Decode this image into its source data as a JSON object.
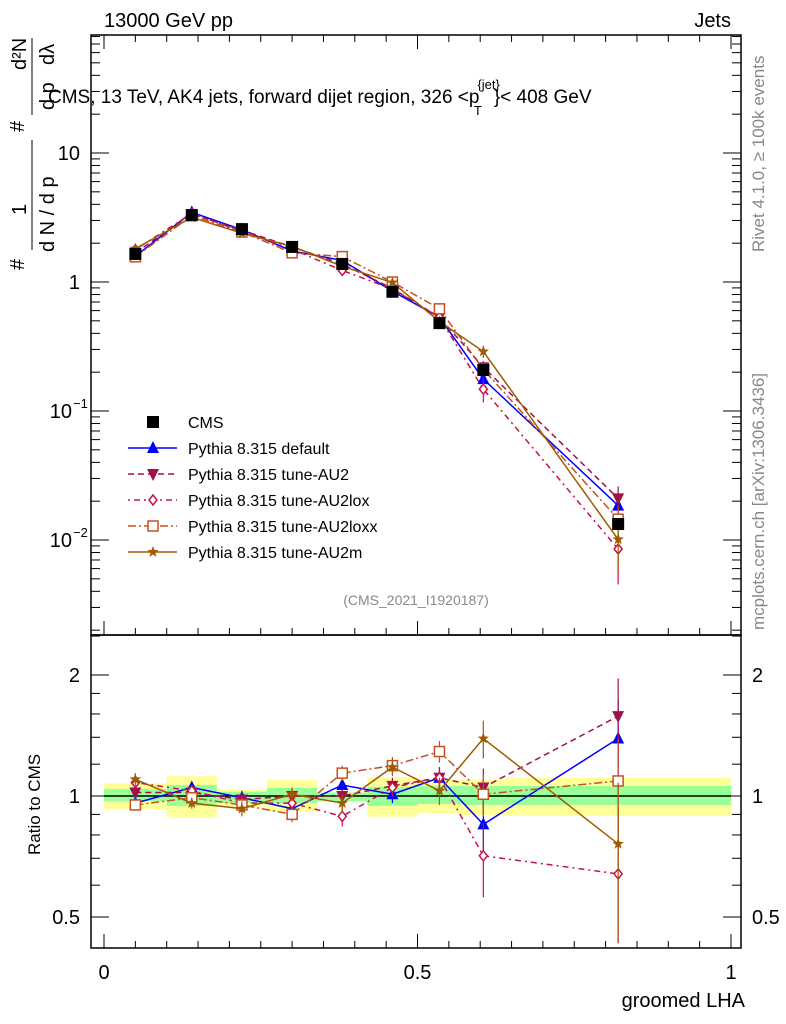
{
  "header": {
    "left": "13000 GeV pp",
    "right": "Jets"
  },
  "side_text": {
    "rivet": "Rivet 4.1.0, ≥ 100k events",
    "mcplots": "mcplots.cern.ch [arXiv:1306.3436]"
  },
  "chart_data": {
    "type": "line",
    "title": "CMS, 13 TeV, AK4 jets, forward dijet region, 326 <p_T^{jet}< 408 GeV",
    "title_parts": {
      "main": "CMS, 13 TeV, AK4 jets, forward dijet region, 326 <p",
      "sup": "{jet}",
      "sub": "T",
      "end": "}< 408 GeV"
    },
    "analysis_id": "(CMS_2021_I1920187)",
    "xlabel": "groomed LHA",
    "ylabel": "1/N dN/dλ (1/σ d²σ/dp_T dλ)",
    "ylabel_parts": {
      "num1": "1",
      "den1": "d N / d p",
      "num2": "d²N",
      "den2": "d p",
      "lam": "dλ",
      "sub": "T",
      "hash": "#"
    },
    "ratio_ylabel": "Ratio to CMS",
    "xlim": [
      0,
      1
    ],
    "ylim": [
      0.0018,
      82
    ],
    "yscale": "log",
    "ratio_ylim": [
      0.42,
      2.5
    ],
    "ratio_yscale": "log",
    "xticks": [
      {
        "v": 0,
        "label": "0"
      },
      {
        "v": 0.5,
        "label": "0.5"
      },
      {
        "v": 1,
        "label": "1"
      }
    ],
    "yticks": [
      {
        "v": 10,
        "label": "10",
        "exp": ""
      },
      {
        "v": 1,
        "label": "1",
        "exp": ""
      },
      {
        "v": 0.1,
        "label": "10",
        "exp": "−1"
      },
      {
        "v": 0.01,
        "label": "10",
        "exp": "−2"
      }
    ],
    "ratio_yticks": [
      {
        "v": 2,
        "label": "2"
      },
      {
        "v": 1,
        "label": "1"
      },
      {
        "v": 0.5,
        "label": "0.5"
      }
    ],
    "bin_edges": [
      0,
      0.1,
      0.18,
      0.26,
      0.34,
      0.42,
      0.5,
      0.57,
      0.64,
      1.0
    ],
    "x": [
      0.05,
      0.14,
      0.22,
      0.3,
      0.38,
      0.46,
      0.535,
      0.605,
      0.82
    ],
    "data": {
      "name": "CMS",
      "values": [
        1.65,
        3.3,
        2.57,
        1.87,
        1.38,
        0.84,
        0.48,
        0.208,
        0.0133
      ],
      "band_stat_lo": [
        0.97,
        0.944,
        0.96,
        0.959,
        0.97,
        0.946,
        0.955,
        0.95,
        0.95
      ],
      "band_stat_hi": [
        1.04,
        1.065,
        1.025,
        1.048,
        1.02,
        1.054,
        1.06,
        1.059,
        1.059
      ],
      "band_tot_lo": [
        0.928,
        0.885,
        0.94,
        0.914,
        0.99,
        0.888,
        0.906,
        0.897,
        0.893
      ],
      "band_tot_hi": [
        1.075,
        1.12,
        1.039,
        1.096,
        1.02,
        1.113,
        1.1,
        1.1,
        1.11
      ],
      "color": "#000000"
    },
    "series": [
      {
        "name": "Pythia 8.315 default",
        "color": "#0000ff",
        "marker": "triangle-up",
        "dash": "",
        "ratio": [
          0.96,
          1.05,
          0.99,
          0.93,
          1.065,
          1.01,
          1.11,
          0.85,
          1.39
        ],
        "err": [
          0.03,
          0.03,
          0.04,
          0.04,
          0.04,
          0.05,
          0.06,
          0.12,
          0.35
        ]
      },
      {
        "name": "Pythia 8.315 tune-AU2",
        "color": "#a0104a",
        "marker": "triangle-down",
        "dash": "6,4",
        "ratio": [
          1.02,
          1.02,
          0.98,
          1.0,
          1.0,
          1.06,
          1.11,
          1.05,
          1.58
        ],
        "err": [
          0.03,
          0.03,
          0.04,
          0.04,
          0.04,
          0.05,
          0.07,
          0.12,
          0.38
        ]
      },
      {
        "name": "Pythia 8.315 tune-AU2lox",
        "color": "#c8104a",
        "marker": "diamond-open",
        "dash": "2,4,6,4",
        "ratio": [
          1.08,
          1.03,
          0.96,
          0.96,
          0.89,
          1.05,
          1.11,
          0.71,
          0.64
        ],
        "err": [
          0.03,
          0.03,
          0.04,
          0.04,
          0.05,
          0.05,
          0.07,
          0.15,
          0.3
        ]
      },
      {
        "name": "Pythia 8.315 tune-AU2loxx",
        "color": "#c85020",
        "marker": "square-open",
        "dash": "8,3,2,3",
        "ratio": [
          0.95,
          0.99,
          0.95,
          0.9,
          1.14,
          1.19,
          1.29,
          1.01,
          1.09
        ],
        "err": [
          0.03,
          0.03,
          0.04,
          0.04,
          0.05,
          0.06,
          0.08,
          0.12,
          0.3
        ]
      },
      {
        "name": "Pythia 8.315 tune-AU2m",
        "color": "#a05a00",
        "marker": "star",
        "dash": "",
        "ratio": [
          1.1,
          0.96,
          0.93,
          1.01,
          0.96,
          1.18,
          1.03,
          1.39,
          0.76
        ],
        "err": [
          0.04,
          0.03,
          0.04,
          0.04,
          0.05,
          0.06,
          0.08,
          0.15,
          0.32
        ]
      }
    ],
    "legend_position": "lower-left",
    "grid": false
  }
}
